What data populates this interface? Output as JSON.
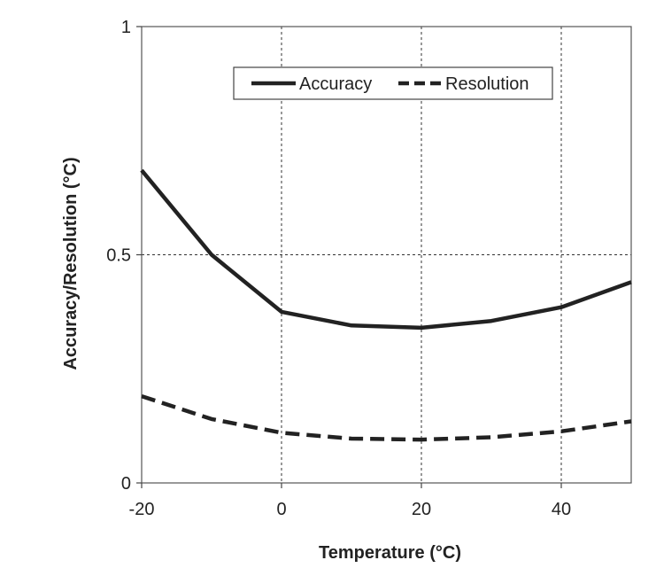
{
  "chart_data": {
    "type": "line",
    "title": "",
    "xlabel": "Temperature  (°C)",
    "ylabel": "Accuracy/Resolution  (°C)",
    "xlim": [
      -20,
      50
    ],
    "ylim": [
      0,
      1
    ],
    "xticks": [
      -20,
      0,
      20,
      40
    ],
    "xtick_labels": [
      "-20",
      "0",
      "20",
      "40"
    ],
    "yticks": [
      0,
      0.5,
      1
    ],
    "ytick_labels": [
      "0",
      "0.5",
      "1"
    ],
    "grid": true,
    "legend": "top-right",
    "series": [
      {
        "name": "Accuracy",
        "style": "solid",
        "color": "#222222",
        "x": [
          -20,
          -10,
          0,
          10,
          20,
          30,
          40,
          50
        ],
        "y": [
          0.685,
          0.5,
          0.375,
          0.345,
          0.34,
          0.355,
          0.385,
          0.44
        ]
      },
      {
        "name": "Resolution",
        "style": "dashed",
        "color": "#222222",
        "x": [
          -20,
          -10,
          0,
          10,
          20,
          30,
          40,
          50
        ],
        "y": [
          0.19,
          0.14,
          0.11,
          0.097,
          0.095,
          0.1,
          0.113,
          0.135
        ]
      }
    ]
  }
}
